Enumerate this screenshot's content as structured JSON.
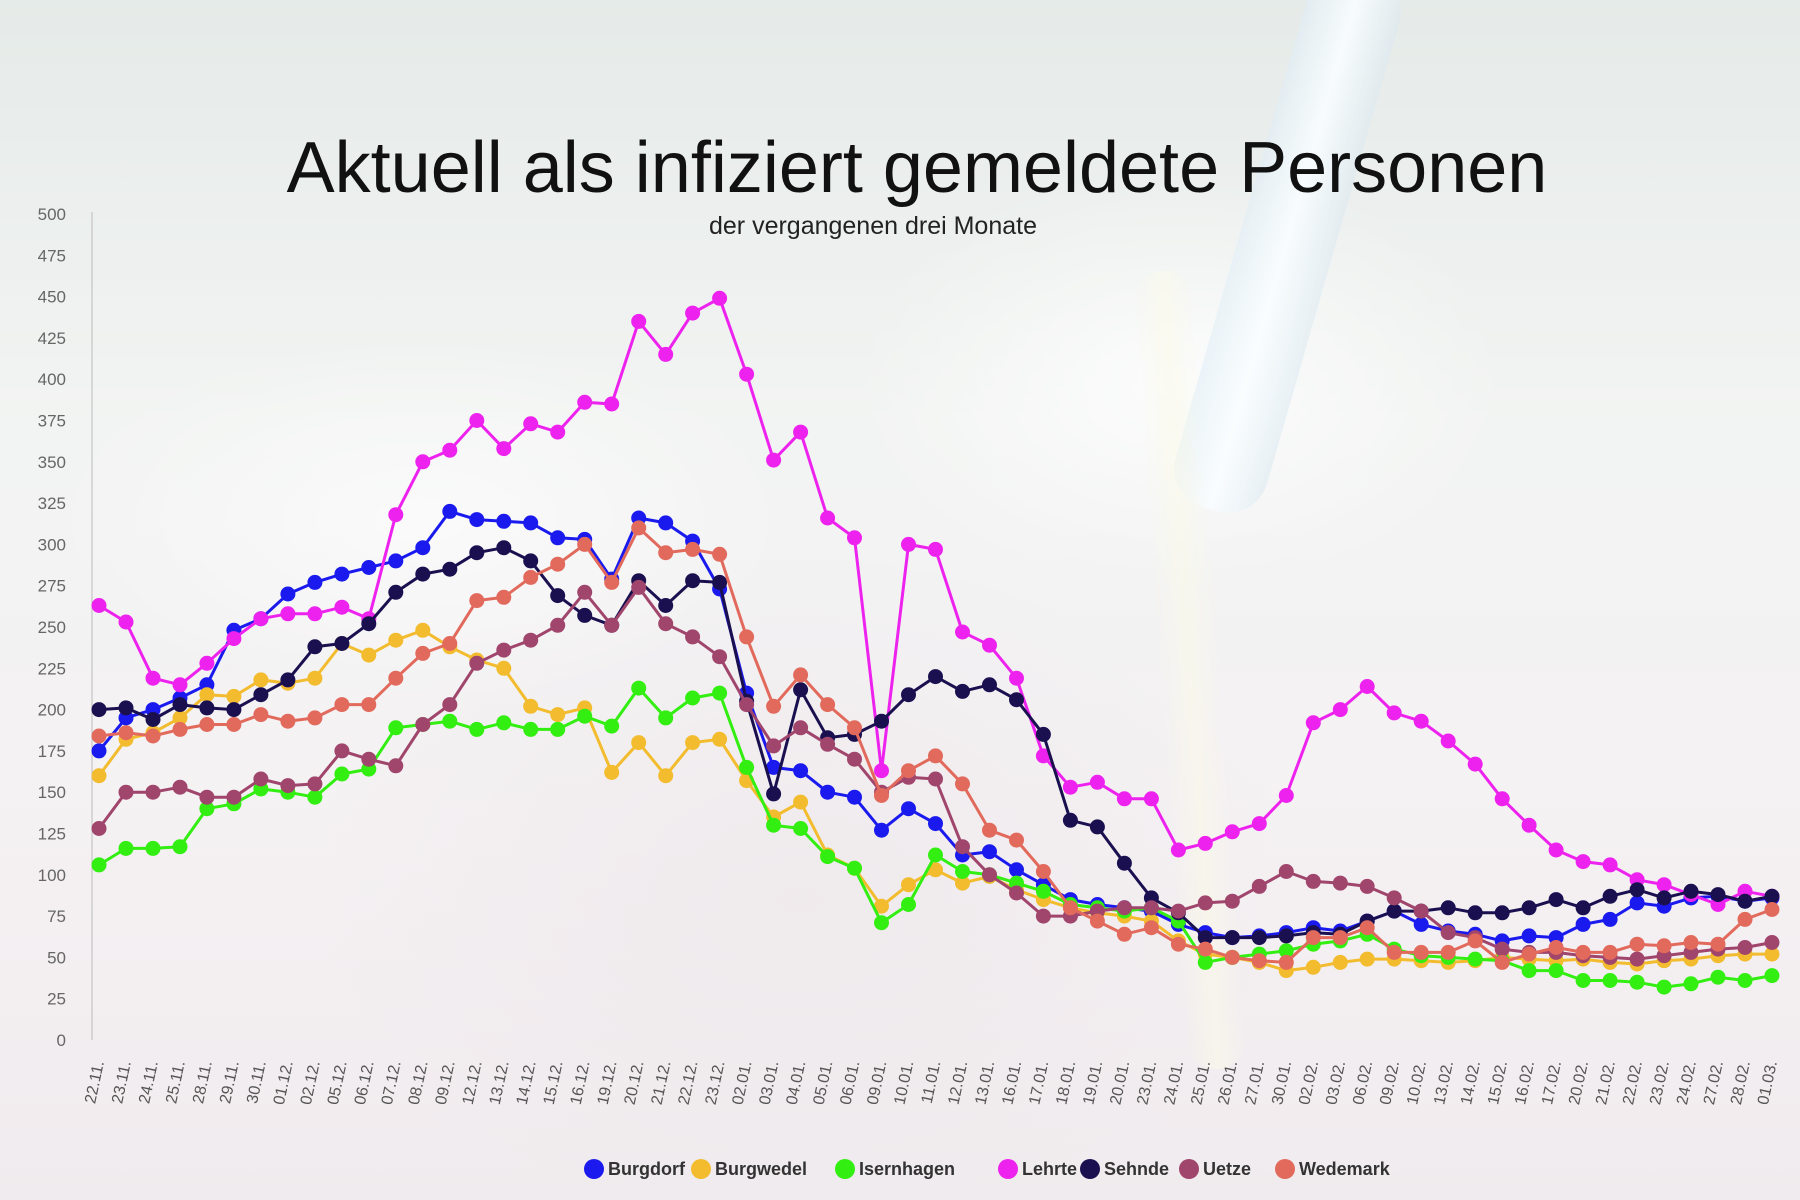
{
  "chart_data": {
    "type": "line",
    "title": "Aktuell als infiziert gemeldete Personen",
    "subtitle": "der vergangenen drei Monate",
    "ylim": [
      0,
      500
    ],
    "y_ticks": [
      0,
      25,
      50,
      75,
      100,
      125,
      150,
      175,
      200,
      225,
      250,
      275,
      300,
      325,
      350,
      375,
      400,
      425,
      450,
      475,
      500
    ],
    "grid": false,
    "legend_position": "bottom",
    "categories": [
      "22.11.",
      "23.11.",
      "24.11.",
      "25.11.",
      "28.11.",
      "29.11.",
      "30.11.",
      "01.12.",
      "02.12.",
      "05.12.",
      "06.12.",
      "07.12.",
      "08.12.",
      "09.12.",
      "12.12.",
      "13.12.",
      "14.12.",
      "15.12.",
      "16.12.",
      "19.12.",
      "20.12.",
      "21.12.",
      "22.12.",
      "23.12.",
      "02.01.",
      "03.01.",
      "04.01.",
      "05.01.",
      "06.01.",
      "09.01.",
      "10.01.",
      "11.01.",
      "12.01.",
      "13.01.",
      "16.01.",
      "17.01.",
      "18.01.",
      "19.01.",
      "20.01.",
      "23.01.",
      "24.01.",
      "25.01.",
      "26.01.",
      "27.01.",
      "30.01.",
      "02.02.",
      "03.02.",
      "06.02.",
      "09.02.",
      "10.02.",
      "13.02.",
      "14.02.",
      "15.02.",
      "16.02.",
      "17.02.",
      "20.02.",
      "21.02.",
      "22.02.",
      "23.02.",
      "24.02.",
      "27.02.",
      "28.02.",
      "01.03."
    ],
    "series": [
      {
        "name": "Burgdorf",
        "color": "#1a1aee",
        "values": [
          175,
          195,
          200,
          207,
          215,
          248,
          255,
          270,
          277,
          282,
          286,
          290,
          298,
          320,
          315,
          314,
          313,
          304,
          303,
          279,
          316,
          313,
          302,
          273,
          210,
          165,
          163,
          150,
          147,
          127,
          140,
          131,
          112,
          114,
          103,
          94,
          85,
          82,
          80,
          78,
          70,
          65,
          62,
          63,
          65,
          68,
          66,
          72,
          78,
          70,
          66,
          64,
          60,
          63,
          62,
          70,
          73,
          83,
          81,
          86,
          87,
          84,
          86
        ]
      },
      {
        "name": "Burgwedel",
        "color": "#f2bc2e",
        "values": [
          160,
          182,
          186,
          195,
          209,
          208,
          218,
          216,
          219,
          240,
          233,
          242,
          248,
          238,
          230,
          225,
          202,
          197,
          201,
          162,
          180,
          160,
          180,
          182,
          157,
          135,
          144,
          112,
          104,
          81,
          94,
          103,
          95,
          99,
          91,
          85,
          80,
          77,
          75,
          72,
          60,
          52,
          50,
          47,
          42,
          44,
          47,
          49,
          49,
          48,
          47,
          48,
          50,
          49,
          48,
          49,
          47,
          46,
          48,
          49,
          51,
          52,
          52
        ]
      },
      {
        "name": "Isernhagen",
        "color": "#33ee11",
        "values": [
          106,
          116,
          116,
          117,
          140,
          143,
          152,
          150,
          147,
          161,
          164,
          189,
          191,
          193,
          188,
          192,
          188,
          188,
          196,
          190,
          213,
          195,
          207,
          210,
          165,
          130,
          128,
          111,
          104,
          71,
          82,
          112,
          102,
          100,
          95,
          90,
          82,
          80,
          78,
          80,
          72,
          47,
          50,
          52,
          54,
          58,
          60,
          64,
          55,
          51,
          50,
          49,
          48,
          42,
          42,
          36,
          36,
          35,
          32,
          34,
          38,
          36,
          39
        ]
      },
      {
        "name": "Lehrte",
        "color": "#ee22ee",
        "values": [
          263,
          253,
          219,
          215,
          228,
          243,
          255,
          258,
          258,
          262,
          255,
          318,
          350,
          357,
          375,
          358,
          373,
          368,
          386,
          385,
          435,
          415,
          440,
          449,
          403,
          351,
          368,
          316,
          304,
          163,
          300,
          297,
          247,
          239,
          219,
          172,
          153,
          156,
          146,
          146,
          115,
          119,
          126,
          131,
          148,
          192,
          200,
          214,
          198,
          193,
          181,
          167,
          146,
          130,
          115,
          108,
          106,
          97,
          94,
          88,
          82,
          90,
          87
        ]
      },
      {
        "name": "Sehnde",
        "color": "#1a1050",
        "values": [
          200,
          201,
          194,
          203,
          201,
          200,
          209,
          218,
          238,
          240,
          252,
          271,
          282,
          285,
          295,
          298,
          290,
          269,
          257,
          251,
          278,
          263,
          278,
          277,
          205,
          149,
          212,
          183,
          185,
          193,
          209,
          220,
          211,
          215,
          206,
          185,
          133,
          129,
          107,
          86,
          77,
          62,
          62,
          62,
          63,
          65,
          64,
          72,
          78,
          78,
          80,
          77,
          77,
          80,
          85,
          80,
          87,
          91,
          86,
          90,
          88,
          84,
          87
        ]
      },
      {
        "name": "Uetze",
        "color": "#a0456c",
        "values": [
          128,
          150,
          150,
          153,
          147,
          147,
          158,
          154,
          155,
          175,
          170,
          166,
          191,
          203,
          228,
          236,
          242,
          251,
          271,
          251,
          274,
          252,
          244,
          232,
          203,
          178,
          189,
          179,
          170,
          150,
          159,
          158,
          117,
          100,
          89,
          75,
          75,
          78,
          80,
          80,
          78,
          83,
          84,
          93,
          102,
          96,
          95,
          93,
          86,
          78,
          65,
          62,
          55,
          53,
          53,
          51,
          50,
          49,
          51,
          53,
          55,
          56,
          59
        ]
      },
      {
        "name": "Wedemark",
        "color": "#e26a5c",
        "values": [
          184,
          186,
          184,
          188,
          191,
          191,
          197,
          193,
          195,
          203,
          203,
          219,
          234,
          240,
          266,
          268,
          280,
          288,
          300,
          277,
          310,
          295,
          297,
          294,
          244,
          202,
          221,
          203,
          189,
          148,
          163,
          172,
          155,
          127,
          121,
          102,
          80,
          72,
          64,
          68,
          58,
          55,
          50,
          48,
          47,
          62,
          62,
          68,
          53,
          53,
          53,
          60,
          47,
          52,
          56,
          53,
          53,
          58,
          57,
          59,
          58,
          73,
          79
        ]
      }
    ]
  }
}
